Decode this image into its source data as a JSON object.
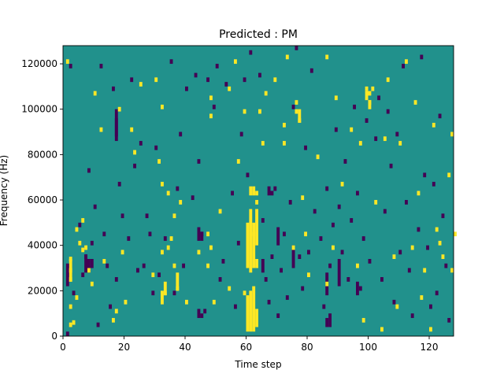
{
  "chart_data": {
    "type": "heatmap",
    "title": "Predicted : PM",
    "xlabel": "Time step",
    "ylabel": "Frequency (Hz)",
    "xlim": [
      0,
      128
    ],
    "ylim": [
      0,
      128000
    ],
    "x_ticks": [
      0,
      20,
      40,
      60,
      80,
      100,
      120
    ],
    "y_ticks": [
      0,
      20000,
      40000,
      60000,
      80000,
      100000,
      120000
    ],
    "x_tick_labels": [
      "0",
      "20",
      "40",
      "60",
      "80",
      "100",
      "120"
    ],
    "y_tick_labels": [
      "0",
      "20000",
      "40000",
      "60000",
      "80000",
      "100000",
      "120000"
    ],
    "grid": false,
    "colormap": {
      "low": "#440154",
      "mid": "#21918c",
      "high": "#fde725"
    },
    "background_value": 0,
    "value_levels": [
      -1,
      0,
      1
    ],
    "grid_shape": {
      "time_steps": 128,
      "frequency_bins": 128
    },
    "bin_width_hz": 1000,
    "cells": [
      [
        1,
        120,
        1
      ],
      [
        2,
        4,
        1
      ],
      [
        2,
        12,
        1
      ],
      [
        2,
        24,
        1
      ],
      [
        2,
        28,
        1
      ],
      [
        2,
        33,
        1
      ],
      [
        3,
        5,
        1
      ],
      [
        4,
        16,
        1
      ],
      [
        4,
        46,
        1
      ],
      [
        5,
        40,
        1
      ],
      [
        6,
        37,
        1
      ],
      [
        6,
        50,
        1
      ],
      [
        7,
        38,
        1
      ],
      [
        8,
        28,
        1
      ],
      [
        9,
        22,
        1
      ],
      [
        10,
        106,
        1
      ],
      [
        12,
        90,
        1
      ],
      [
        13,
        32,
        1
      ],
      [
        16,
        6,
        1
      ],
      [
        17,
        10,
        1
      ],
      [
        18,
        99,
        1
      ],
      [
        19,
        36,
        1
      ],
      [
        20,
        14,
        1
      ],
      [
        22,
        90,
        1
      ],
      [
        23,
        80,
        1
      ],
      [
        25,
        110,
        1
      ],
      [
        29,
        26,
        1
      ],
      [
        30,
        112,
        1
      ],
      [
        31,
        76,
        1
      ],
      [
        32,
        100,
        1
      ],
      [
        32,
        66,
        1
      ],
      [
        32,
        36,
        1
      ],
      [
        33,
        18,
        1
      ],
      [
        34,
        62,
        1
      ],
      [
        34,
        38,
        1
      ],
      [
        35,
        42,
        1
      ],
      [
        36,
        52,
        1
      ],
      [
        36,
        30,
        1
      ],
      [
        37,
        20,
        1
      ],
      [
        38,
        58,
        1
      ],
      [
        40,
        14,
        1
      ],
      [
        44,
        36,
        1
      ],
      [
        47,
        44,
        1
      ],
      [
        47,
        30,
        1
      ],
      [
        48,
        104,
        1
      ],
      [
        48,
        96,
        1
      ],
      [
        48,
        38,
        1
      ],
      [
        49,
        14,
        1
      ],
      [
        51,
        54,
        1
      ],
      [
        54,
        108,
        1
      ],
      [
        54,
        20,
        1
      ],
      [
        56,
        120,
        1
      ],
      [
        57,
        76,
        1
      ],
      [
        59,
        18,
        1
      ],
      [
        59,
        98,
        1
      ],
      [
        62,
        44,
        1
      ],
      [
        63,
        58,
        1
      ],
      [
        63,
        62,
        1
      ],
      [
        64,
        98,
        1
      ],
      [
        65,
        84,
        1
      ],
      [
        66,
        106,
        1
      ],
      [
        69,
        112,
        1
      ],
      [
        72,
        92,
        1
      ],
      [
        72,
        84,
        1
      ],
      [
        73,
        122,
        1
      ],
      [
        75,
        38,
        1
      ],
      [
        76,
        102,
        1
      ],
      [
        76,
        98,
        1
      ],
      [
        77,
        94,
        1
      ],
      [
        78,
        60,
        1
      ],
      [
        79,
        44,
        1
      ],
      [
        80,
        26,
        1
      ],
      [
        83,
        78,
        1
      ],
      [
        86,
        122,
        1
      ],
      [
        86,
        22,
        1
      ],
      [
        88,
        38,
        1
      ],
      [
        89,
        104,
        1
      ],
      [
        91,
        66,
        1
      ],
      [
        94,
        90,
        1
      ],
      [
        96,
        30,
        1
      ],
      [
        97,
        84,
        1
      ],
      [
        98,
        6,
        1
      ],
      [
        99,
        108,
        1
      ],
      [
        100,
        106,
        1
      ],
      [
        100,
        102,
        1
      ],
      [
        101,
        108,
        1
      ],
      [
        102,
        58,
        1
      ],
      [
        104,
        2,
        1
      ],
      [
        105,
        86,
        1
      ],
      [
        106,
        112,
        1
      ],
      [
        108,
        34,
        1
      ],
      [
        109,
        12,
        1
      ],
      [
        110,
        84,
        1
      ],
      [
        112,
        120,
        1
      ],
      [
        114,
        38,
        1
      ],
      [
        115,
        102,
        1
      ],
      [
        116,
        62,
        1
      ],
      [
        117,
        16,
        1
      ],
      [
        118,
        28,
        1
      ],
      [
        120,
        2,
        1
      ],
      [
        121,
        92,
        1
      ],
      [
        122,
        46,
        1
      ],
      [
        123,
        40,
        1
      ],
      [
        124,
        34,
        1
      ],
      [
        126,
        70,
        1
      ],
      [
        127,
        88,
        1
      ],
      [
        127,
        28,
        1
      ],
      [
        128,
        44,
        1
      ],
      [
        1,
        0,
        -1
      ],
      [
        2,
        118,
        -1
      ],
      [
        3,
        18,
        -1
      ],
      [
        5,
        48,
        -1
      ],
      [
        6,
        26,
        -1
      ],
      [
        7,
        34,
        -1
      ],
      [
        8,
        72,
        -1
      ],
      [
        9,
        40,
        -1
      ],
      [
        10,
        56,
        -1
      ],
      [
        11,
        4,
        -1
      ],
      [
        12,
        118,
        -1
      ],
      [
        13,
        44,
        -1
      ],
      [
        14,
        30,
        -1
      ],
      [
        15,
        12,
        -1
      ],
      [
        16,
        108,
        -1
      ],
      [
        17,
        24,
        -1
      ],
      [
        18,
        66,
        -1
      ],
      [
        19,
        52,
        -1
      ],
      [
        21,
        42,
        -1
      ],
      [
        22,
        112,
        -1
      ],
      [
        23,
        74,
        -1
      ],
      [
        24,
        28,
        -1
      ],
      [
        25,
        84,
        -1
      ],
      [
        26,
        30,
        -1
      ],
      [
        27,
        52,
        -1
      ],
      [
        28,
        44,
        -1
      ],
      [
        29,
        18,
        -1
      ],
      [
        30,
        82,
        -1
      ],
      [
        31,
        26,
        -1
      ],
      [
        33,
        42,
        -1
      ],
      [
        35,
        120,
        -1
      ],
      [
        36,
        18,
        -1
      ],
      [
        37,
        64,
        -1
      ],
      [
        38,
        88,
        -1
      ],
      [
        39,
        30,
        -1
      ],
      [
        40,
        108,
        -1
      ],
      [
        42,
        60,
        -1
      ],
      [
        43,
        114,
        -1
      ],
      [
        44,
        76,
        -1
      ],
      [
        45,
        44,
        -1
      ],
      [
        46,
        10,
        -1
      ],
      [
        47,
        112,
        -1
      ],
      [
        49,
        100,
        -1
      ],
      [
        50,
        118,
        -1
      ],
      [
        51,
        24,
        -1
      ],
      [
        52,
        32,
        -1
      ],
      [
        53,
        110,
        -1
      ],
      [
        55,
        62,
        -1
      ],
      [
        56,
        12,
        -1
      ],
      [
        57,
        40,
        -1
      ],
      [
        58,
        88,
        -1
      ],
      [
        59,
        112,
        -1
      ],
      [
        60,
        70,
        -1
      ],
      [
        61,
        124,
        -1
      ],
      [
        64,
        114,
        -1
      ],
      [
        65,
        50,
        -1
      ],
      [
        66,
        24,
        -1
      ],
      [
        67,
        14,
        -1
      ],
      [
        68,
        34,
        -1
      ],
      [
        69,
        64,
        -1
      ],
      [
        70,
        8,
        -1
      ],
      [
        71,
        28,
        -1
      ],
      [
        72,
        44,
        -1
      ],
      [
        73,
        16,
        -1
      ],
      [
        74,
        58,
        -1
      ],
      [
        75,
        100,
        -1
      ],
      [
        76,
        126,
        -1
      ],
      [
        77,
        34,
        -1
      ],
      [
        78,
        20,
        -1
      ],
      [
        79,
        82,
        -1
      ],
      [
        80,
        36,
        -1
      ],
      [
        81,
        116,
        -1
      ],
      [
        82,
        54,
        -1
      ],
      [
        84,
        42,
        -1
      ],
      [
        85,
        12,
        -1
      ],
      [
        86,
        64,
        -1
      ],
      [
        87,
        30,
        -1
      ],
      [
        88,
        48,
        -1
      ],
      [
        89,
        90,
        -1
      ],
      [
        90,
        56,
        -1
      ],
      [
        91,
        36,
        -1
      ],
      [
        92,
        76,
        -1
      ],
      [
        93,
        24,
        -1
      ],
      [
        94,
        50,
        -1
      ],
      [
        95,
        100,
        -1
      ],
      [
        96,
        62,
        -1
      ],
      [
        97,
        20,
        -1
      ],
      [
        98,
        42,
        -1
      ],
      [
        99,
        94,
        -1
      ],
      [
        100,
        32,
        -1
      ],
      [
        102,
        86,
        -1
      ],
      [
        103,
        104,
        -1
      ],
      [
        104,
        24,
        -1
      ],
      [
        105,
        54,
        -1
      ],
      [
        106,
        98,
        -1
      ],
      [
        107,
        74,
        -1
      ],
      [
        108,
        14,
        -1
      ],
      [
        109,
        88,
        -1
      ],
      [
        110,
        36,
        -1
      ],
      [
        111,
        118,
        -1
      ],
      [
        112,
        58,
        -1
      ],
      [
        113,
        28,
        -1
      ],
      [
        114,
        8,
        -1
      ],
      [
        116,
        46,
        -1
      ],
      [
        117,
        122,
        -1
      ],
      [
        118,
        70,
        -1
      ],
      [
        119,
        38,
        -1
      ],
      [
        120,
        12,
        -1
      ],
      [
        121,
        66,
        -1
      ],
      [
        122,
        18,
        -1
      ],
      [
        123,
        96,
        -1
      ],
      [
        124,
        52,
        -1
      ],
      [
        125,
        30,
        -1
      ],
      [
        126,
        6,
        -1
      ]
    ],
    "column_runs": [
      [
        60,
        2,
        18,
        1
      ],
      [
        61,
        2,
        20,
        1
      ],
      [
        62,
        2,
        22,
        1
      ],
      [
        63,
        4,
        12,
        1
      ],
      [
        60,
        30,
        50,
        1
      ],
      [
        61,
        28,
        56,
        1
      ],
      [
        62,
        30,
        50,
        1
      ],
      [
        63,
        40,
        56,
        1
      ],
      [
        61,
        62,
        66,
        1
      ],
      [
        62,
        62,
        66,
        1
      ],
      [
        63,
        30,
        34,
        1
      ],
      [
        2,
        24,
        34,
        1
      ],
      [
        1,
        22,
        32,
        -1
      ],
      [
        86,
        18,
        28,
        -1
      ],
      [
        70,
        40,
        48,
        -1
      ],
      [
        65,
        28,
        34,
        -1
      ],
      [
        75,
        30,
        40,
        -1
      ],
      [
        90,
        22,
        34,
        -1
      ],
      [
        96,
        18,
        24,
        -1
      ],
      [
        32,
        14,
        20,
        1
      ],
      [
        33,
        18,
        24,
        1
      ],
      [
        17,
        86,
        96,
        -1
      ],
      [
        17,
        88,
        100,
        -1
      ],
      [
        37,
        20,
        28,
        1
      ],
      [
        44,
        42,
        48,
        -1
      ],
      [
        45,
        42,
        46,
        -1
      ],
      [
        7,
        28,
        36,
        -1
      ],
      [
        8,
        28,
        34,
        -1
      ],
      [
        9,
        30,
        34,
        -1
      ],
      [
        77,
        94,
        100,
        1
      ],
      [
        86,
        4,
        8,
        -1
      ],
      [
        87,
        4,
        10,
        -1
      ],
      [
        67,
        62,
        66,
        -1
      ],
      [
        68,
        62,
        64,
        -1
      ],
      [
        44,
        8,
        12,
        -1
      ],
      [
        45,
        8,
        10,
        -1
      ],
      [
        99,
        104,
        108,
        1
      ],
      [
        100,
        100,
        104,
        1
      ]
    ]
  }
}
